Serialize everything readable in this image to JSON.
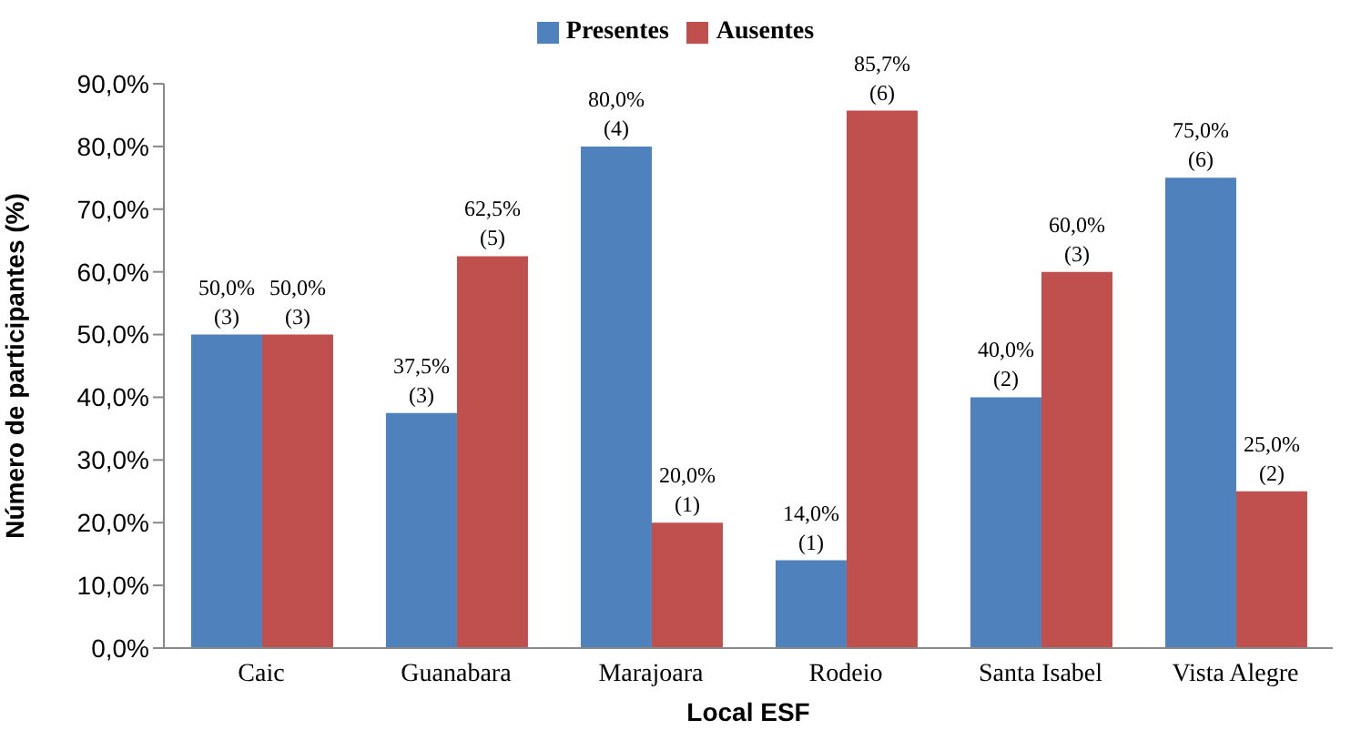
{
  "chart_data": {
    "type": "bar",
    "categories": [
      "Caic",
      "Guanabara",
      "Marajoara",
      "Rodeio",
      "Santa Isabel",
      "Vista Alegre"
    ],
    "xlabel": "Local ESF",
    "ylabel": "Número de participantes (%)",
    "series": [
      {
        "name": "Presentes",
        "color": "#4f81bd",
        "values": [
          50,
          37.5,
          80,
          14,
          40,
          75
        ],
        "value_labels": [
          "50,0% (3)",
          "37,5% (3)",
          "80,0% (4)",
          "14,0% (1)",
          "40,0% (2)",
          "75,0% (6)"
        ]
      },
      {
        "name": "Ausentes",
        "color": "#c0504d",
        "values": [
          50,
          62.5,
          20,
          85.7,
          60,
          25
        ],
        "value_labels": [
          "50,0% (3)",
          "62,5% (5)",
          "20,0% (1)",
          "85,7% (6)",
          "60,0% (3)",
          "25,0% (2)"
        ]
      }
    ],
    "ylim": [
      0,
      90
    ],
    "yticks": [
      {
        "value": 0,
        "label": "0,0%"
      },
      {
        "value": 10,
        "label": "10,0%"
      },
      {
        "value": 20,
        "label": "20,0%"
      },
      {
        "value": 30,
        "label": "30,0%"
      },
      {
        "value": 40,
        "label": "40,0%"
      },
      {
        "value": 50,
        "label": "50,0%"
      },
      {
        "value": 60,
        "label": "60,0%"
      },
      {
        "value": 70,
        "label": "70,0%"
      },
      {
        "value": 80,
        "label": "80,0%"
      },
      {
        "value": 90,
        "label": "90,0%"
      }
    ],
    "grid": false,
    "legend": "top"
  }
}
